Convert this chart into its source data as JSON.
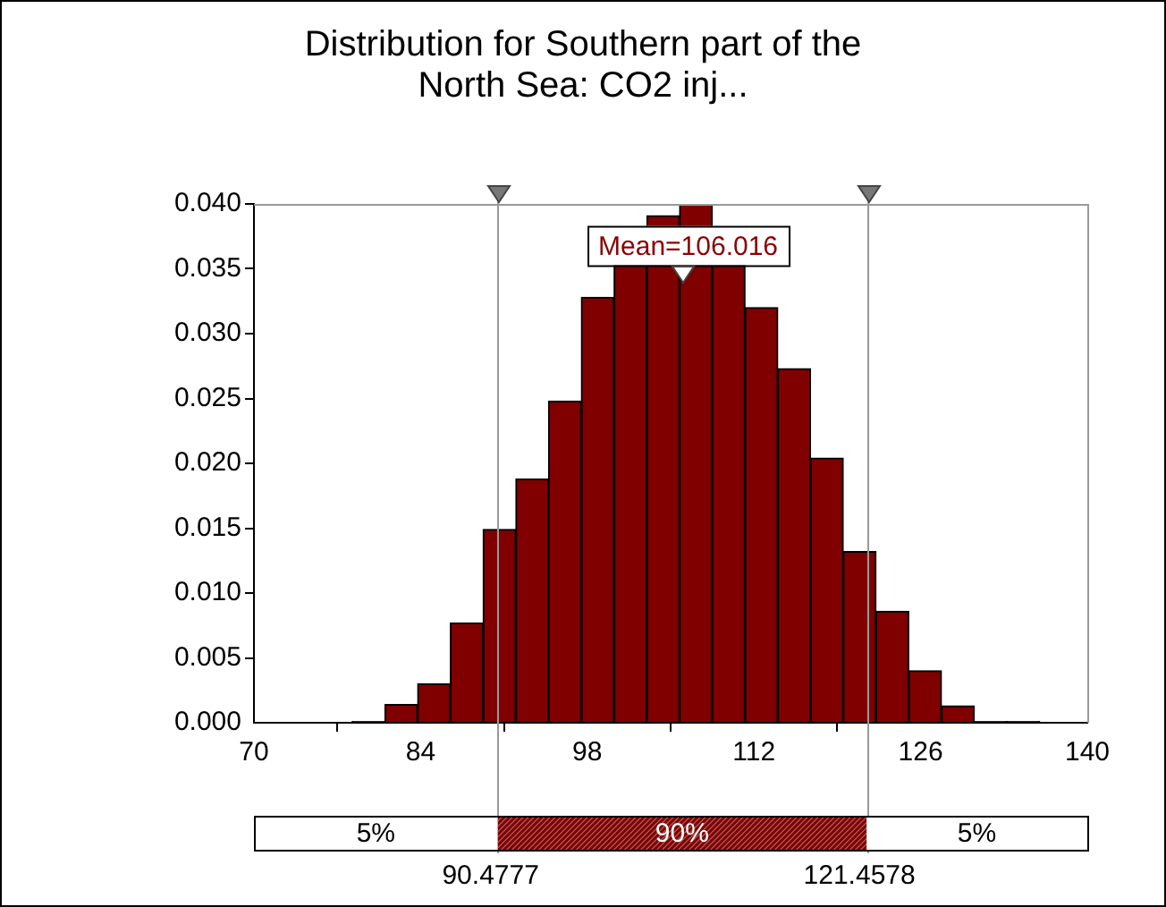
{
  "chart_data": {
    "type": "histogram",
    "title": "Distribution for Southern part of the North Sea: CO2 inj...",
    "bins": [
      78.25,
      81,
      83.75,
      86.5,
      89.25,
      92,
      94.75,
      97.5,
      100.25,
      103,
      105.75,
      108.5,
      111.25,
      114,
      116.75,
      119.5,
      122.25,
      125,
      127.75,
      130.5,
      133.25,
      136
    ],
    "values": [
      0.0001,
      0.0014,
      0.003,
      0.0077,
      0.0149,
      0.0188,
      0.0248,
      0.0328,
      0.0368,
      0.0391,
      0.04,
      0.0365,
      0.032,
      0.0273,
      0.0204,
      0.0132,
      0.0086,
      0.004,
      0.0013,
      0.0001,
      0.0001
    ],
    "color": "#800000",
    "xlim": [
      70,
      140
    ],
    "xticks": [
      70,
      84,
      98,
      112,
      126,
      140
    ],
    "ylim": [
      0,
      0.04
    ],
    "yticks": [
      {
        "value": 0,
        "label": "0.000"
      },
      {
        "value": 0.005,
        "label": "0.005"
      },
      {
        "value": 0.01,
        "label": "0.010"
      },
      {
        "value": 0.015,
        "label": "0.015"
      },
      {
        "value": 0.02,
        "label": "0.020"
      },
      {
        "value": 0.025,
        "label": "0.025"
      },
      {
        "value": 0.03,
        "label": "0.030"
      },
      {
        "value": 0.035,
        "label": "0.035"
      },
      {
        "value": 0.04,
        "label": "0.040"
      }
    ],
    "ref_lines": [
      {
        "axis": "x",
        "value": 90.4777,
        "label": "90.4777",
        "color": "#999999"
      },
      {
        "axis": "x",
        "value": 121.4578,
        "label": "121.4578",
        "color": "#999999"
      }
    ],
    "annotations": [
      {
        "text": "Mean=106.016",
        "x": 106.016,
        "y": 0.035
      },
      "5%",
      "90%",
      "5%"
    ],
    "grid": false,
    "legend": false
  }
}
